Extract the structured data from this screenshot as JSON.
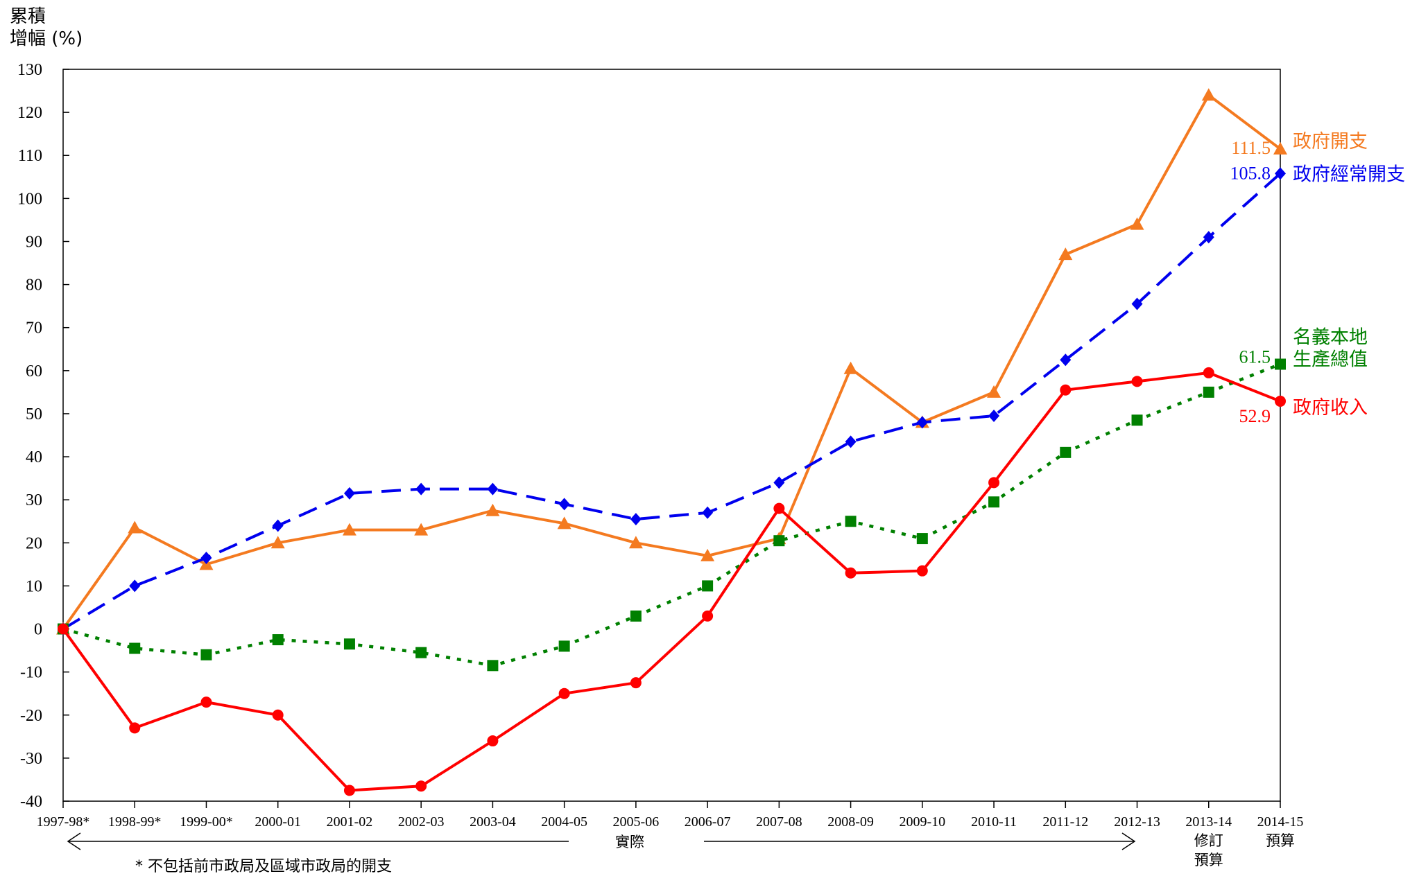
{
  "chart_data": {
    "type": "line",
    "ylabel_line1": "累積",
    "ylabel_line2": "增幅 (%)",
    "ylim": [
      -40,
      130
    ],
    "yticks": [
      -40,
      -30,
      -20,
      -10,
      0,
      10,
      20,
      30,
      40,
      50,
      60,
      70,
      80,
      90,
      100,
      110,
      120,
      130
    ],
    "categories": [
      "1997-98*",
      "1998-99*",
      "1999-00*",
      "2000-01",
      "2001-02",
      "2002-03",
      "2003-04",
      "2004-05",
      "2005-06",
      "2006-07",
      "2007-08",
      "2008-09",
      "2009-10",
      "2010-11",
      "2011-12",
      "2012-13",
      "2013-14",
      "2014-15"
    ],
    "category_notes": {
      "16": [
        "修訂",
        "預算"
      ],
      "17": [
        "預算"
      ]
    },
    "period_label": "實際",
    "footnote": "*  不包括前市政局及區域市政局的開支",
    "grid": false,
    "series": [
      {
        "name": "政府開支",
        "color": "#f47a20",
        "marker": "triangle",
        "dash": "solid",
        "values": [
          0,
          23.5,
          15,
          20,
          23,
          23,
          27.5,
          24.5,
          20,
          17,
          21,
          60.5,
          48,
          55,
          87,
          94,
          124,
          111.5
        ],
        "end_value_label": "111.5",
        "name_lines": [
          "政府開支"
        ]
      },
      {
        "name": "政府經常開支",
        "color": "#0000ee",
        "marker": "diamond",
        "dash": "dashed",
        "values": [
          0,
          10,
          16.5,
          24,
          31.5,
          32.5,
          32.5,
          29,
          25.5,
          27,
          34,
          43.5,
          48,
          49.5,
          62.5,
          75.5,
          91,
          105.8
        ],
        "end_value_label": "105.8",
        "name_lines": [
          "政府經常開支"
        ]
      },
      {
        "name": "名義本地生產總值",
        "color": "#008000",
        "marker": "square",
        "dash": "dotted",
        "values": [
          0,
          -4.5,
          -6,
          -2.5,
          -3.5,
          -5.5,
          -8.5,
          -4,
          3,
          10,
          20.5,
          25,
          21,
          29.5,
          41,
          48.5,
          55,
          61.5
        ],
        "end_value_label": "61.5",
        "name_lines": [
          "名義本地",
          "生產總值"
        ]
      },
      {
        "name": "政府收入",
        "color": "#ff0000",
        "marker": "circle",
        "dash": "solid",
        "values": [
          0,
          -23,
          -17,
          -20,
          -37.5,
          -36.5,
          -26,
          -15,
          -12.5,
          3,
          28,
          13,
          13.5,
          34,
          55.5,
          57.5,
          59.5,
          52.9
        ],
        "end_value_label": "52.9",
        "name_lines": [
          "政府收入"
        ]
      }
    ]
  }
}
